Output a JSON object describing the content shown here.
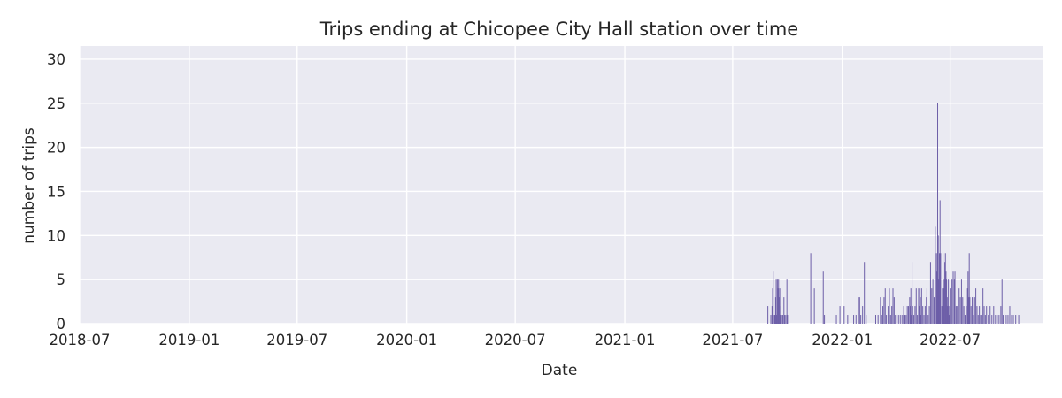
{
  "chart_data": {
    "type": "bar",
    "title": "Trips ending at Chicopee City Hall station over time",
    "xlabel": "Date",
    "ylabel": "number of trips",
    "x_range": [
      "2018-07-01",
      "2022-12-03"
    ],
    "ylim": [
      0,
      31.5
    ],
    "x_ticks": [
      "2018-07",
      "2019-01",
      "2019-07",
      "2020-01",
      "2020-07",
      "2021-01",
      "2021-07",
      "2022-01",
      "2022-07"
    ],
    "y_ticks": [
      0,
      5,
      10,
      15,
      20,
      25,
      30
    ],
    "grid": true,
    "bar_color": "#6d5fa8",
    "background_color": "#eaeaf2",
    "points": [
      [
        "2021-08-29",
        2
      ],
      [
        "2021-09-03",
        1
      ],
      [
        "2021-09-05",
        2
      ],
      [
        "2021-09-06",
        4
      ],
      [
        "2021-09-07",
        6
      ],
      [
        "2021-09-09",
        1
      ],
      [
        "2021-09-10",
        1
      ],
      [
        "2021-09-11",
        3
      ],
      [
        "2021-09-12",
        5
      ],
      [
        "2021-09-13",
        1
      ],
      [
        "2021-09-14",
        5
      ],
      [
        "2021-09-15",
        4
      ],
      [
        "2021-09-16",
        5
      ],
      [
        "2021-09-17",
        3
      ],
      [
        "2021-09-18",
        4
      ],
      [
        "2021-09-19",
        1
      ],
      [
        "2021-09-20",
        2
      ],
      [
        "2021-09-21",
        1
      ],
      [
        "2021-09-23",
        1
      ],
      [
        "2021-09-25",
        3
      ],
      [
        "2021-09-26",
        1
      ],
      [
        "2021-09-28",
        1
      ],
      [
        "2021-09-30",
        5
      ],
      [
        "2021-10-01",
        1
      ],
      [
        "2021-11-09",
        8
      ],
      [
        "2021-11-15",
        4
      ],
      [
        "2021-11-30",
        6
      ],
      [
        "2021-12-02",
        1
      ],
      [
        "2021-12-22",
        1
      ],
      [
        "2021-12-28",
        2
      ],
      [
        "2022-01-04",
        2
      ],
      [
        "2022-01-10",
        1
      ],
      [
        "2022-01-20",
        1
      ],
      [
        "2022-01-24",
        1
      ],
      [
        "2022-01-28",
        3
      ],
      [
        "2022-01-30",
        3
      ],
      [
        "2022-02-01",
        1
      ],
      [
        "2022-02-04",
        2
      ],
      [
        "2022-02-07",
        7
      ],
      [
        "2022-02-10",
        1
      ],
      [
        "2022-02-26",
        1
      ],
      [
        "2022-03-02",
        1
      ],
      [
        "2022-03-06",
        3
      ],
      [
        "2022-03-08",
        1
      ],
      [
        "2022-03-10",
        2
      ],
      [
        "2022-03-12",
        3
      ],
      [
        "2022-03-14",
        4
      ],
      [
        "2022-03-16",
        1
      ],
      [
        "2022-03-19",
        2
      ],
      [
        "2022-03-21",
        4
      ],
      [
        "2022-03-23",
        1
      ],
      [
        "2022-03-25",
        2
      ],
      [
        "2022-03-27",
        4
      ],
      [
        "2022-03-29",
        3
      ],
      [
        "2022-03-31",
        1
      ],
      [
        "2022-04-03",
        1
      ],
      [
        "2022-04-06",
        1
      ],
      [
        "2022-04-09",
        1
      ],
      [
        "2022-04-12",
        1
      ],
      [
        "2022-04-14",
        2
      ],
      [
        "2022-04-16",
        1
      ],
      [
        "2022-04-18",
        1
      ],
      [
        "2022-04-20",
        2
      ],
      [
        "2022-04-22",
        2
      ],
      [
        "2022-04-24",
        3
      ],
      [
        "2022-04-25",
        2
      ],
      [
        "2022-04-26",
        4
      ],
      [
        "2022-04-27",
        1
      ],
      [
        "2022-04-28",
        7
      ],
      [
        "2022-04-29",
        2
      ],
      [
        "2022-05-01",
        1
      ],
      [
        "2022-05-03",
        2
      ],
      [
        "2022-05-05",
        4
      ],
      [
        "2022-05-07",
        1
      ],
      [
        "2022-05-09",
        4
      ],
      [
        "2022-05-10",
        2
      ],
      [
        "2022-05-11",
        4
      ],
      [
        "2022-05-12",
        3
      ],
      [
        "2022-05-13",
        1
      ],
      [
        "2022-05-14",
        4
      ],
      [
        "2022-05-16",
        2
      ],
      [
        "2022-05-18",
        1
      ],
      [
        "2022-05-20",
        2
      ],
      [
        "2022-05-22",
        3
      ],
      [
        "2022-05-23",
        4
      ],
      [
        "2022-05-25",
        1
      ],
      [
        "2022-05-27",
        2
      ],
      [
        "2022-05-29",
        7
      ],
      [
        "2022-05-31",
        4
      ],
      [
        "2022-06-02",
        5
      ],
      [
        "2022-06-04",
        3
      ],
      [
        "2022-06-06",
        11
      ],
      [
        "2022-06-08",
        8
      ],
      [
        "2022-06-09",
        6
      ],
      [
        "2022-06-10",
        25
      ],
      [
        "2022-06-11",
        10
      ],
      [
        "2022-06-12",
        5
      ],
      [
        "2022-06-13",
        8
      ],
      [
        "2022-06-14",
        14
      ],
      [
        "2022-06-15",
        8
      ],
      [
        "2022-06-17",
        2
      ],
      [
        "2022-06-18",
        4
      ],
      [
        "2022-06-19",
        8
      ],
      [
        "2022-06-20",
        4
      ],
      [
        "2022-06-21",
        5
      ],
      [
        "2022-06-22",
        7
      ],
      [
        "2022-06-23",
        8
      ],
      [
        "2022-06-24",
        6
      ],
      [
        "2022-06-25",
        5
      ],
      [
        "2022-06-26",
        3
      ],
      [
        "2022-06-27",
        2
      ],
      [
        "2022-06-28",
        5
      ],
      [
        "2022-06-29",
        1
      ],
      [
        "2022-06-30",
        2
      ],
      [
        "2022-07-02",
        4
      ],
      [
        "2022-07-04",
        5
      ],
      [
        "2022-07-06",
        6
      ],
      [
        "2022-07-08",
        5
      ],
      [
        "2022-07-09",
        6
      ],
      [
        "2022-07-11",
        2
      ],
      [
        "2022-07-13",
        2
      ],
      [
        "2022-07-14",
        1
      ],
      [
        "2022-07-16",
        4
      ],
      [
        "2022-07-18",
        3
      ],
      [
        "2022-07-20",
        5
      ],
      [
        "2022-07-22",
        3
      ],
      [
        "2022-07-24",
        2
      ],
      [
        "2022-07-26",
        1
      ],
      [
        "2022-07-28",
        2
      ],
      [
        "2022-07-30",
        4
      ],
      [
        "2022-07-31",
        6
      ],
      [
        "2022-08-01",
        3
      ],
      [
        "2022-08-02",
        8
      ],
      [
        "2022-08-03",
        3
      ],
      [
        "2022-08-05",
        2
      ],
      [
        "2022-08-07",
        3
      ],
      [
        "2022-08-09",
        1
      ],
      [
        "2022-08-11",
        3
      ],
      [
        "2022-08-13",
        4
      ],
      [
        "2022-08-15",
        2
      ],
      [
        "2022-08-17",
        1
      ],
      [
        "2022-08-19",
        2
      ],
      [
        "2022-08-21",
        1
      ],
      [
        "2022-08-23",
        1
      ],
      [
        "2022-08-25",
        4
      ],
      [
        "2022-08-27",
        2
      ],
      [
        "2022-08-29",
        1
      ],
      [
        "2022-08-31",
        2
      ],
      [
        "2022-09-03",
        1
      ],
      [
        "2022-09-06",
        2
      ],
      [
        "2022-09-09",
        1
      ],
      [
        "2022-09-12",
        2
      ],
      [
        "2022-09-15",
        1
      ],
      [
        "2022-09-18",
        1
      ],
      [
        "2022-09-21",
        1
      ],
      [
        "2022-09-24",
        2
      ],
      [
        "2022-09-26",
        5
      ],
      [
        "2022-09-28",
        1
      ],
      [
        "2022-10-03",
        1
      ],
      [
        "2022-10-06",
        1
      ],
      [
        "2022-10-09",
        2
      ],
      [
        "2022-10-12",
        1
      ],
      [
        "2022-10-15",
        1
      ],
      [
        "2022-10-19",
        1
      ],
      [
        "2022-10-24",
        1
      ]
    ]
  }
}
